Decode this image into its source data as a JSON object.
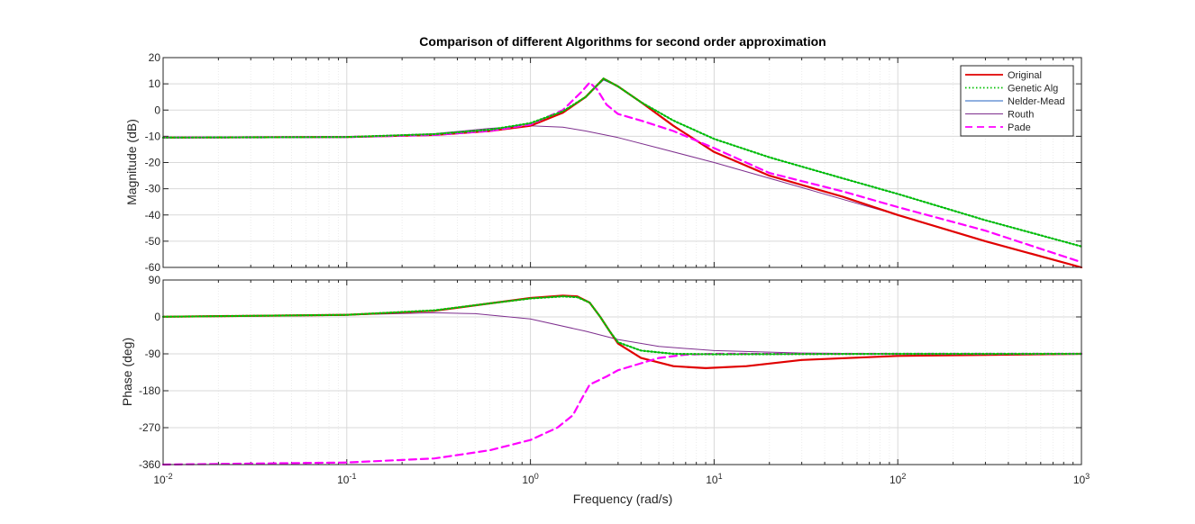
{
  "chart_data": {
    "type": "line",
    "title": "Comparison of different Algorithms for second order approximation",
    "xlabel": "Frequency  (rad/s)",
    "x_scale": "log",
    "xlim": [
      0.01,
      1000
    ],
    "x_tick_labels": [
      {
        "base": "10",
        "exp": "-2"
      },
      {
        "base": "10",
        "exp": "-1"
      },
      {
        "base": "10",
        "exp": "0"
      },
      {
        "base": "10",
        "exp": "1"
      },
      {
        "base": "10",
        "exp": "2"
      },
      {
        "base": "10",
        "exp": "3"
      }
    ],
    "grid": true,
    "legend_position": "top-right",
    "legend": [
      {
        "name": "Original",
        "color": "#e00000",
        "style": "solid"
      },
      {
        "name": "Genetic Alg",
        "color": "#00c000",
        "style": "dotted"
      },
      {
        "name": "Nelder-Mead",
        "color": "#2060c0",
        "style": "solid"
      },
      {
        "name": "Routh",
        "color": "#7e2f8e",
        "style": "solid"
      },
      {
        "name": "Pade",
        "color": "#ff00ff",
        "style": "dashed"
      }
    ],
    "panels": [
      {
        "id": "magnitude",
        "ylabel": "Magnitude (dB)",
        "ylim": [
          -60,
          20
        ],
        "y_ticks": [
          20,
          10,
          0,
          -10,
          -20,
          -30,
          -40,
          -50,
          -60
        ],
        "series": [
          {
            "name": "Original",
            "points": [
              [
                0.01,
                -10.5
              ],
              [
                0.1,
                -10.3
              ],
              [
                0.3,
                -9.5
              ],
              [
                0.6,
                -8
              ],
              [
                1,
                -6
              ],
              [
                1.5,
                -1
              ],
              [
                2,
                5
              ],
              [
                2.5,
                12
              ],
              [
                3,
                9
              ],
              [
                4,
                3
              ],
              [
                6,
                -6
              ],
              [
                10,
                -16
              ],
              [
                20,
                -25
              ],
              [
                50,
                -33
              ],
              [
                100,
                -40
              ],
              [
                300,
                -50
              ],
              [
                1000,
                -60
              ]
            ]
          },
          {
            "name": "Genetic Alg",
            "points": [
              [
                0.01,
                -10.5
              ],
              [
                0.1,
                -10.3
              ],
              [
                0.3,
                -9.2
              ],
              [
                0.6,
                -7.5
              ],
              [
                1,
                -5
              ],
              [
                1.5,
                -0.5
              ],
              [
                2,
                5
              ],
              [
                2.5,
                12
              ],
              [
                3,
                9
              ],
              [
                4,
                3
              ],
              [
                6,
                -4
              ],
              [
                10,
                -11
              ],
              [
                20,
                -18
              ],
              [
                50,
                -26
              ],
              [
                100,
                -32
              ],
              [
                300,
                -42
              ],
              [
                1000,
                -52
              ]
            ]
          },
          {
            "name": "Nelder-Mead",
            "points": [
              [
                0.01,
                -10.5
              ],
              [
                0.1,
                -10.3
              ],
              [
                0.3,
                -9.2
              ],
              [
                0.6,
                -7.5
              ],
              [
                1,
                -5
              ],
              [
                1.5,
                -0.5
              ],
              [
                2,
                5
              ],
              [
                2.5,
                11.5
              ],
              [
                3,
                9
              ],
              [
                4,
                3
              ],
              [
                6,
                -4
              ],
              [
                10,
                -11
              ],
              [
                20,
                -18
              ],
              [
                50,
                -26
              ],
              [
                100,
                -32
              ],
              [
                300,
                -42
              ],
              [
                1000,
                -52
              ]
            ]
          },
          {
            "name": "Routh",
            "points": [
              [
                0.01,
                -10.5
              ],
              [
                0.1,
                -10.2
              ],
              [
                0.3,
                -9
              ],
              [
                0.6,
                -7
              ],
              [
                1,
                -6
              ],
              [
                1.5,
                -6.5
              ],
              [
                2,
                -8
              ],
              [
                3,
                -10.5
              ],
              [
                5,
                -14.5
              ],
              [
                10,
                -20
              ],
              [
                20,
                -26
              ],
              [
                50,
                -34
              ],
              [
                100,
                -40
              ],
              [
                300,
                -50
              ],
              [
                1000,
                -60
              ]
            ]
          },
          {
            "name": "Pade",
            "points": [
              [
                0.01,
                -10.5
              ],
              [
                0.1,
                -10.3
              ],
              [
                0.3,
                -9.5
              ],
              [
                0.6,
                -8
              ],
              [
                1,
                -5.5
              ],
              [
                1.5,
                0
              ],
              [
                1.9,
                7
              ],
              [
                2.1,
                10.5
              ],
              [
                2.3,
                8
              ],
              [
                2.6,
                2
              ],
              [
                3,
                -1.5
              ],
              [
                4,
                -4
              ],
              [
                6,
                -8
              ],
              [
                10,
                -14.5
              ],
              [
                20,
                -24
              ],
              [
                50,
                -31
              ],
              [
                100,
                -37
              ],
              [
                300,
                -46
              ],
              [
                1000,
                -58
              ]
            ]
          }
        ]
      },
      {
        "id": "phase",
        "ylabel": "Phase (deg)",
        "ylim": [
          -360,
          90
        ],
        "y_ticks": [
          90,
          0,
          -90,
          -180,
          -270,
          -360
        ],
        "series": [
          {
            "name": "Original",
            "points": [
              [
                0.01,
                0.5
              ],
              [
                0.1,
                5
              ],
              [
                0.3,
                15
              ],
              [
                0.6,
                33
              ],
              [
                1,
                46
              ],
              [
                1.5,
                52
              ],
              [
                1.8,
                50
              ],
              [
                2.1,
                35
              ],
              [
                2.4,
                0
              ],
              [
                2.7,
                -35
              ],
              [
                3,
                -65
              ],
              [
                4,
                -100
              ],
              [
                6,
                -120
              ],
              [
                9,
                -125
              ],
              [
                15,
                -120
              ],
              [
                30,
                -105
              ],
              [
                100,
                -95
              ],
              [
                1000,
                -90
              ]
            ]
          },
          {
            "name": "Genetic Alg",
            "points": [
              [
                0.01,
                0.5
              ],
              [
                0.1,
                5
              ],
              [
                0.3,
                16
              ],
              [
                0.6,
                33
              ],
              [
                1,
                45
              ],
              [
                1.5,
                50
              ],
              [
                1.8,
                48
              ],
              [
                2.1,
                35
              ],
              [
                2.4,
                0
              ],
              [
                2.7,
                -35
              ],
              [
                3,
                -62
              ],
              [
                4,
                -82
              ],
              [
                6,
                -90
              ],
              [
                10,
                -91
              ],
              [
                100,
                -90
              ],
              [
                1000,
                -90
              ]
            ]
          },
          {
            "name": "Nelder-Mead",
            "points": [
              [
                0.01,
                0.5
              ],
              [
                0.1,
                5
              ],
              [
                0.3,
                16
              ],
              [
                0.6,
                33
              ],
              [
                1,
                45
              ],
              [
                1.5,
                50
              ],
              [
                1.8,
                48
              ],
              [
                2.1,
                35
              ],
              [
                2.4,
                0
              ],
              [
                2.7,
                -35
              ],
              [
                3,
                -62
              ],
              [
                4,
                -82
              ],
              [
                6,
                -90
              ],
              [
                10,
                -91
              ],
              [
                100,
                -90
              ],
              [
                1000,
                -90
              ]
            ]
          },
          {
            "name": "Routh",
            "points": [
              [
                0.01,
                0.5
              ],
              [
                0.1,
                5
              ],
              [
                0.3,
                10
              ],
              [
                0.5,
                8
              ],
              [
                1,
                -5
              ],
              [
                2,
                -35
              ],
              [
                3,
                -55
              ],
              [
                5,
                -72
              ],
              [
                10,
                -82
              ],
              [
                30,
                -88
              ],
              [
                100,
                -90
              ],
              [
                1000,
                -90
              ]
            ]
          },
          {
            "name": "Pade",
            "points": [
              [
                0.01,
                -360
              ],
              [
                0.1,
                -355
              ],
              [
                0.3,
                -345
              ],
              [
                0.6,
                -325
              ],
              [
                1,
                -300
              ],
              [
                1.4,
                -270
              ],
              [
                1.7,
                -240
              ],
              [
                1.9,
                -200
              ],
              [
                2.1,
                -165
              ],
              [
                2.6,
                -145
              ],
              [
                3,
                -130
              ],
              [
                4,
                -113
              ],
              [
                5,
                -100
              ],
              [
                7,
                -92
              ],
              [
                10,
                -90
              ],
              [
                100,
                -90
              ],
              [
                1000,
                -90
              ]
            ]
          }
        ]
      }
    ]
  }
}
